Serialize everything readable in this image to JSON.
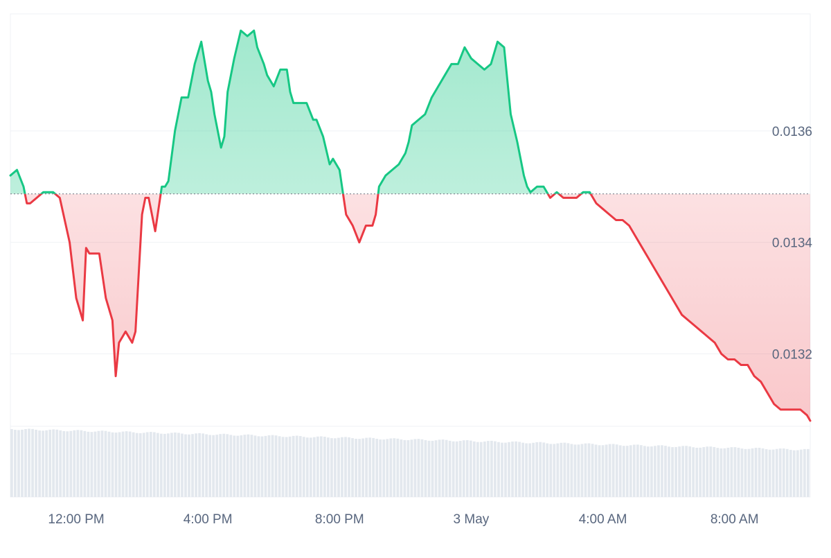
{
  "chart_data": {
    "type": "area",
    "baseline": 0.013487,
    "colors": {
      "up_line": "#16c784",
      "down_line": "#ea3943",
      "up_fill": "#16c784",
      "down_fill": "#ea3943",
      "grid": "#eff2f5",
      "baseline": "#7a7f8a",
      "volume": "#e3e8ee",
      "axis_text": "#58667e"
    },
    "y_ticks": [
      {
        "value": 0.0136,
        "label": "0.0136"
      },
      {
        "value": 0.0134,
        "label": "0.0134"
      },
      {
        "value": 0.0132,
        "label": "0.0132"
      }
    ],
    "ylim": [
      0.01307,
      0.01381
    ],
    "xlim": [
      0,
      24.3
    ],
    "x_ticks": [
      {
        "hours": 2.0,
        "label": "12:00 PM"
      },
      {
        "hours": 6.0,
        "label": "4:00 PM"
      },
      {
        "hours": 10.0,
        "label": "8:00 PM"
      },
      {
        "hours": 14.0,
        "label": "3 May"
      },
      {
        "hours": 18.0,
        "label": "4:00 AM"
      },
      {
        "hours": 22.0,
        "label": "8:00 AM"
      }
    ],
    "x_unit": "hours after 10:00 AM, 2 May",
    "price": {
      "x": [
        0.0,
        0.2,
        0.4,
        0.5,
        0.6,
        0.8,
        1.0,
        1.2,
        1.3,
        1.5,
        1.8,
        2.0,
        2.2,
        2.3,
        2.4,
        2.5,
        2.7,
        2.9,
        3.1,
        3.2,
        3.3,
        3.5,
        3.7,
        3.8,
        4.0,
        4.1,
        4.2,
        4.4,
        4.6,
        4.7,
        4.8,
        5.0,
        5.2,
        5.4,
        5.6,
        5.8,
        6.0,
        6.1,
        6.2,
        6.4,
        6.5,
        6.6,
        6.8,
        7.0,
        7.2,
        7.4,
        7.5,
        7.7,
        7.8,
        8.0,
        8.2,
        8.4,
        8.5,
        8.6,
        8.8,
        9.0,
        9.2,
        9.3,
        9.5,
        9.7,
        9.8,
        10.0,
        10.2,
        10.4,
        10.6,
        10.8,
        11.0,
        11.1,
        11.2,
        11.4,
        11.6,
        11.8,
        12.0,
        12.1,
        12.2,
        12.4,
        12.6,
        12.8,
        13.0,
        13.2,
        13.4,
        13.6,
        13.8,
        14.0,
        14.2,
        14.4,
        14.6,
        14.8,
        15.0,
        15.2,
        15.4,
        15.6,
        15.7,
        15.8,
        16.0,
        16.2,
        16.4,
        16.6,
        16.8,
        17.0,
        17.2,
        17.4,
        17.6,
        17.8,
        18.0,
        18.2,
        18.4,
        18.6,
        18.8,
        19.0,
        19.2,
        19.4,
        19.6,
        19.8,
        20.0,
        20.2,
        20.4,
        20.6,
        20.8,
        21.0,
        21.2,
        21.4,
        21.5,
        21.6,
        21.8,
        22.0,
        22.2,
        22.4,
        22.6,
        22.8,
        23.0,
        23.2,
        23.4,
        23.6,
        23.8,
        24.0,
        24.2,
        24.3
      ],
      "y": [
        0.01352,
        0.01353,
        0.0135,
        0.01347,
        0.01347,
        0.01348,
        0.01349,
        0.01349,
        0.01349,
        0.01348,
        0.0134,
        0.0133,
        0.01326,
        0.01339,
        0.01338,
        0.01338,
        0.01338,
        0.0133,
        0.01326,
        0.01316,
        0.01322,
        0.01324,
        0.01322,
        0.01324,
        0.01345,
        0.01348,
        0.01348,
        0.01342,
        0.0135,
        0.0135,
        0.01351,
        0.0136,
        0.01366,
        0.01366,
        0.01372,
        0.01376,
        0.01369,
        0.01367,
        0.01363,
        0.01357,
        0.01359,
        0.01367,
        0.01373,
        0.01378,
        0.01377,
        0.01378,
        0.01375,
        0.01372,
        0.0137,
        0.01368,
        0.01371,
        0.01371,
        0.01367,
        0.01365,
        0.01365,
        0.01365,
        0.01362,
        0.01362,
        0.01359,
        0.01354,
        0.01355,
        0.01353,
        0.01345,
        0.01343,
        0.0134,
        0.01343,
        0.01343,
        0.01345,
        0.0135,
        0.01352,
        0.01353,
        0.01354,
        0.01356,
        0.01358,
        0.01361,
        0.01362,
        0.01363,
        0.01366,
        0.01368,
        0.0137,
        0.01372,
        0.01372,
        0.01375,
        0.01373,
        0.01372,
        0.01371,
        0.01372,
        0.01376,
        0.01375,
        0.01363,
        0.01358,
        0.01352,
        0.0135,
        0.01349,
        0.0135,
        0.0135,
        0.01348,
        0.01349,
        0.01348,
        0.01348,
        0.01348,
        0.01349,
        0.01349,
        0.01347,
        0.01346,
        0.01345,
        0.01344,
        0.01344,
        0.01343,
        0.01341,
        0.01339,
        0.01337,
        0.01335,
        0.01333,
        0.01331,
        0.01329,
        0.01327,
        0.01326,
        0.01325,
        0.01324,
        0.01323,
        0.01322,
        0.01321,
        0.0132,
        0.01319,
        0.01319,
        0.01318,
        0.01318,
        0.01316,
        0.01315,
        0.01313,
        0.01311,
        0.0131,
        0.0131,
        0.0131,
        0.0131,
        0.01309,
        0.01308
      ]
    }
  }
}
